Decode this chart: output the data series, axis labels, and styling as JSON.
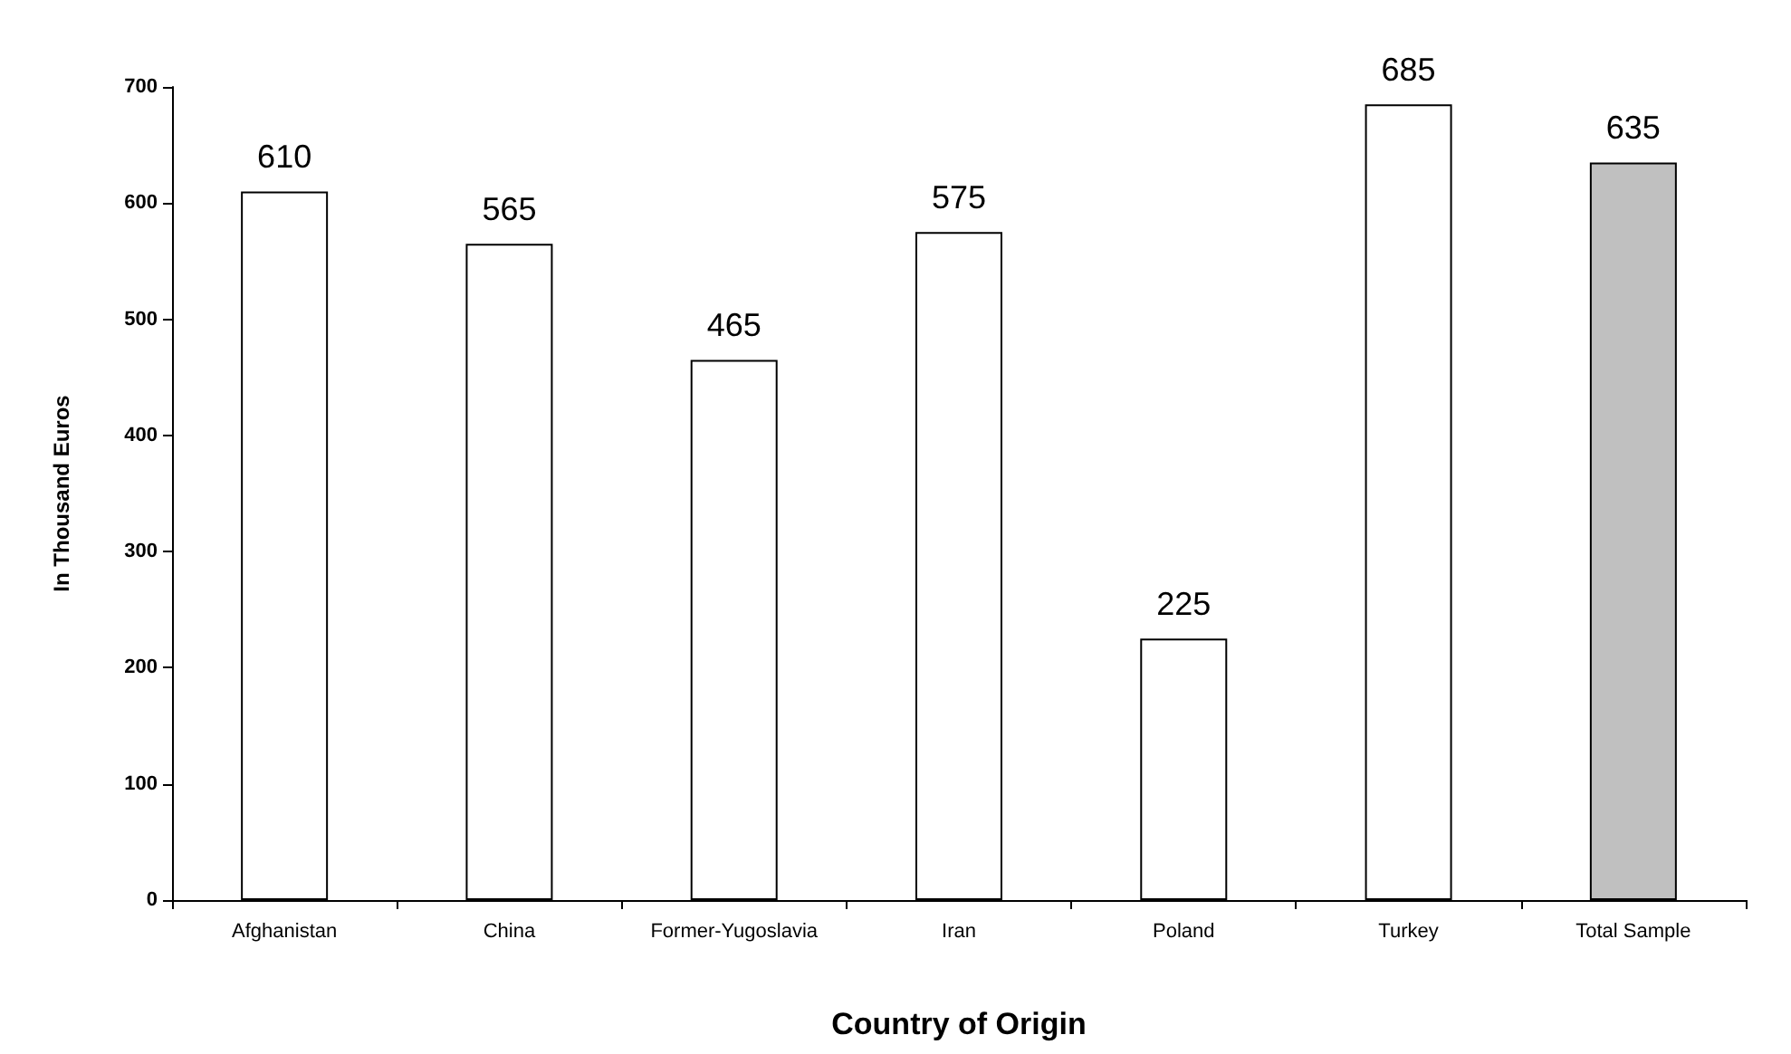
{
  "chart_data": {
    "type": "bar",
    "categories": [
      "Afghanistan",
      "China",
      "Former-Yugoslavia",
      "Iran",
      "Poland",
      "Turkey",
      "Total Sample"
    ],
    "values": [
      610,
      565,
      465,
      575,
      225,
      685,
      635
    ],
    "colors": [
      "#ffffff",
      "#ffffff",
      "#ffffff",
      "#ffffff",
      "#ffffff",
      "#ffffff",
      "#c0c0c0"
    ],
    "xlabel": "Country of Origin",
    "ylabel": "In Thousand Euros",
    "ylim": [
      0,
      700
    ],
    "yticks": [
      0,
      100,
      200,
      300,
      400,
      500,
      600,
      700
    ],
    "data_labels": true
  }
}
